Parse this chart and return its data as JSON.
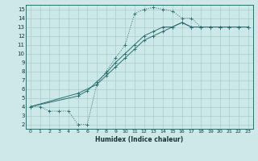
{
  "xlabel": "Humidex (Indice chaleur)",
  "bg_color": "#cce8e8",
  "grid_color": "#aacccc",
  "line_color": "#2a7070",
  "xlim": [
    -0.5,
    23.5
  ],
  "ylim": [
    1.5,
    15.5
  ],
  "xticks": [
    0,
    1,
    2,
    3,
    4,
    5,
    6,
    7,
    8,
    9,
    10,
    11,
    12,
    13,
    14,
    15,
    16,
    17,
    18,
    19,
    20,
    21,
    22,
    23
  ],
  "yticks": [
    2,
    3,
    4,
    5,
    6,
    7,
    8,
    9,
    10,
    11,
    12,
    13,
    14,
    15
  ],
  "line1_x": [
    0,
    1,
    2,
    3,
    4,
    5,
    6,
    7,
    8,
    9,
    10,
    11,
    12,
    13,
    14,
    15,
    16,
    17,
    18,
    19,
    20,
    21,
    22,
    23
  ],
  "line1_y": [
    4,
    4,
    3.5,
    3.5,
    3.5,
    2,
    2,
    6.5,
    8,
    9.5,
    11,
    14.5,
    15,
    15.2,
    15,
    14.8,
    14,
    14,
    13,
    13,
    13,
    13,
    13,
    13
  ],
  "line2_x": [
    0,
    5,
    7,
    8,
    9,
    10,
    11,
    12,
    13,
    14,
    15,
    16,
    17,
    18,
    19,
    20,
    21,
    22,
    23
  ],
  "line2_y": [
    4,
    5.5,
    6.5,
    7.5,
    8.5,
    9.5,
    10.5,
    11.5,
    12,
    12.5,
    13,
    13.5,
    13,
    13,
    13,
    13,
    13,
    13,
    13
  ],
  "line3_x": [
    0,
    5,
    6,
    7,
    8,
    9,
    10,
    11,
    12,
    13,
    14,
    15,
    16,
    17,
    18,
    19,
    20,
    21,
    22,
    23
  ],
  "line3_y": [
    4,
    5.2,
    5.8,
    6.8,
    7.8,
    9,
    10,
    11,
    12,
    12.5,
    13,
    13,
    13.5,
    13,
    13,
    13,
    13,
    13,
    13,
    13
  ]
}
